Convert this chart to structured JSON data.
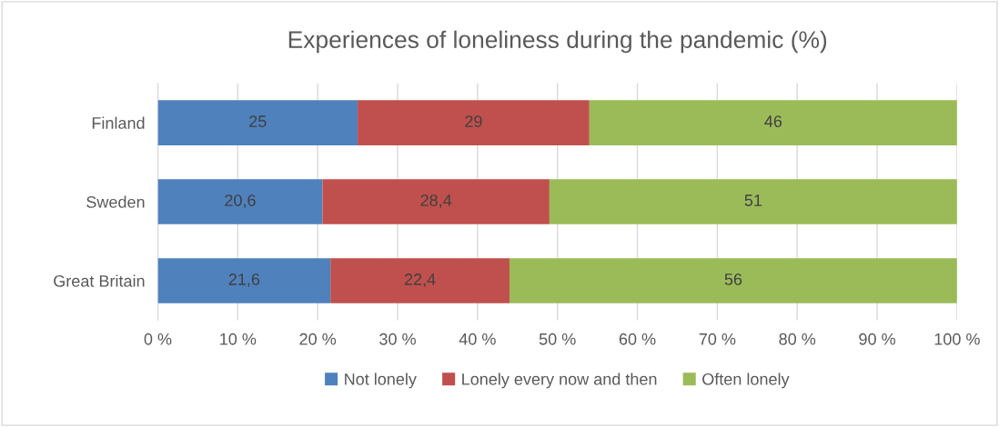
{
  "chart_data": {
    "type": "bar",
    "orientation": "horizontal",
    "stacked": true,
    "title": "Experiences of loneliness during the pandemic (%)",
    "categories": [
      "Finland",
      "Sweden",
      "Great Britain"
    ],
    "series": [
      {
        "name": "Not lonely",
        "color": "#4f81bd",
        "values": [
          25,
          20.6,
          21.6
        ],
        "value_labels": [
          "25",
          "20,6",
          "21,6"
        ]
      },
      {
        "name": "Lonely every now and then",
        "color": "#c0504d",
        "values": [
          29,
          28.4,
          22.4
        ],
        "value_labels": [
          "29",
          "28,4",
          "22,4"
        ]
      },
      {
        "name": "Often lonely",
        "color": "#9bbb59",
        "values": [
          46,
          51,
          56
        ],
        "value_labels": [
          "46",
          "51",
          "56"
        ]
      }
    ],
    "xlim": [
      0,
      100
    ],
    "xticks": [
      {
        "value": 0,
        "label": "0 %"
      },
      {
        "value": 10,
        "label": "10 %"
      },
      {
        "value": 20,
        "label": "20 %"
      },
      {
        "value": 30,
        "label": "30 %"
      },
      {
        "value": 40,
        "label": "40 %"
      },
      {
        "value": 50,
        "label": "50 %"
      },
      {
        "value": 60,
        "label": "60 %"
      },
      {
        "value": 70,
        "label": "70 %"
      },
      {
        "value": 80,
        "label": "80 %"
      },
      {
        "value": 90,
        "label": "90 %"
      },
      {
        "value": 100,
        "label": "100 %"
      }
    ],
    "grid": "x",
    "legend": "bottom"
  }
}
